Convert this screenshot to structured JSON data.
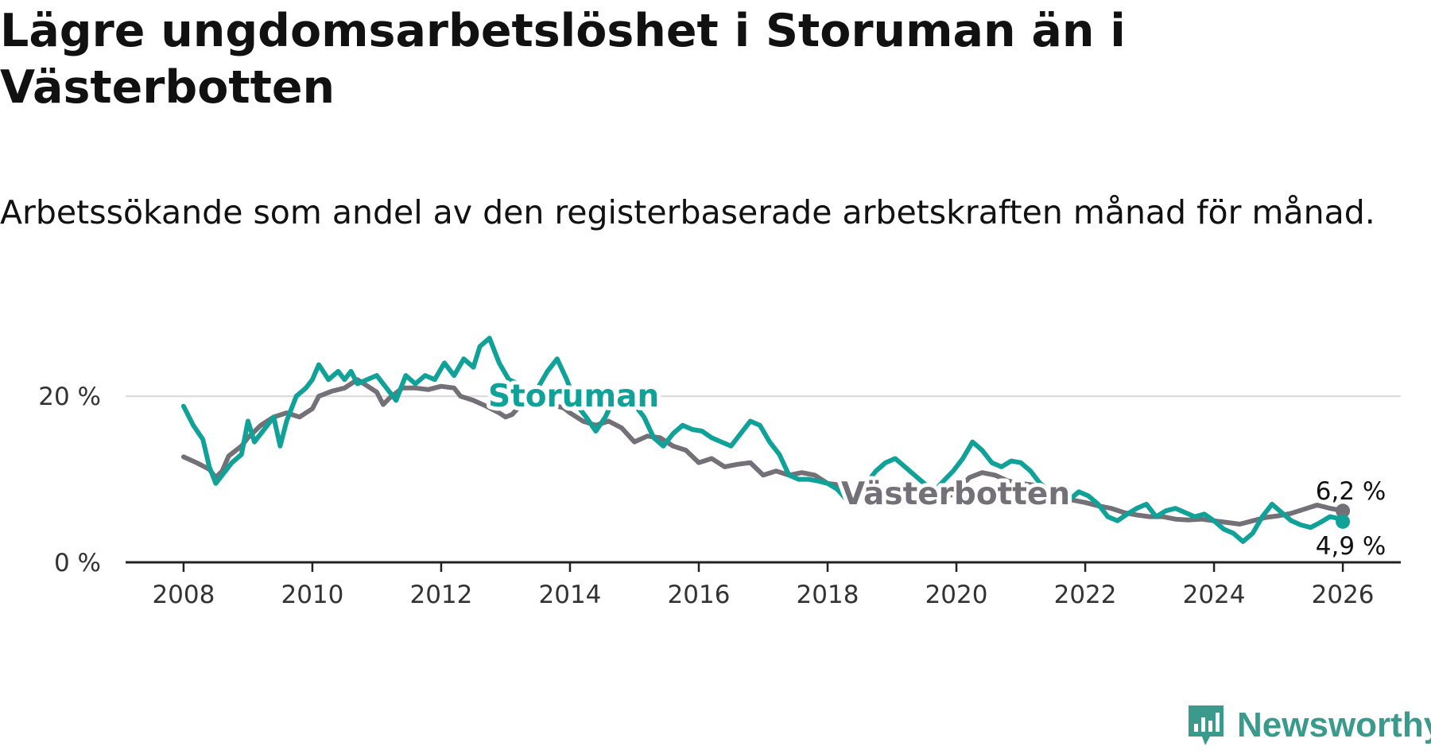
{
  "title": "Lägre ungdomsarbetslöshet i Storuman än i Västerbotten",
  "subtitle": "Arbetssökande som andel av den registerbaserade arbetskraften månad för månad.",
  "brand": "Newsworthy",
  "colors": {
    "storuman": "#10a298",
    "vasterbotten": "#737177",
    "grid": "#d9d9d9",
    "axis": "#222222"
  },
  "chart_data": {
    "type": "line",
    "x_unit": "year",
    "xlim": [
      2007.1,
      2026.9
    ],
    "ylim": [
      0,
      25
    ],
    "yticks": [
      {
        "v": 0,
        "label": "0 %"
      },
      {
        "v": 20,
        "label": "20 %"
      }
    ],
    "xticks": [
      {
        "v": 2008,
        "label": "2008"
      },
      {
        "v": 2010,
        "label": "2010"
      },
      {
        "v": 2012,
        "label": "2012"
      },
      {
        "v": 2014,
        "label": "2014"
      },
      {
        "v": 2016,
        "label": "2016"
      },
      {
        "v": 2018,
        "label": "2018"
      },
      {
        "v": 2020,
        "label": "2020"
      },
      {
        "v": 2022,
        "label": "2022"
      },
      {
        "v": 2024,
        "label": "2024"
      },
      {
        "v": 2026,
        "label": "2026"
      }
    ],
    "series": [
      {
        "name": "Västerbotten",
        "label": "Västerbotten",
        "end_label": "6,2 %",
        "points": [
          [
            2008.0,
            12.7
          ],
          [
            2008.2,
            12.0
          ],
          [
            2008.4,
            11.2
          ],
          [
            2008.5,
            10.2
          ],
          [
            2008.6,
            11.0
          ],
          [
            2008.7,
            12.8
          ],
          [
            2008.9,
            14.0
          ],
          [
            2009.0,
            15.0
          ],
          [
            2009.2,
            16.5
          ],
          [
            2009.4,
            17.5
          ],
          [
            2009.6,
            18.0
          ],
          [
            2009.8,
            17.5
          ],
          [
            2010.0,
            18.5
          ],
          [
            2010.1,
            20.0
          ],
          [
            2010.3,
            20.6
          ],
          [
            2010.5,
            21.0
          ],
          [
            2010.7,
            22.0
          ],
          [
            2010.8,
            21.5
          ],
          [
            2011.0,
            20.5
          ],
          [
            2011.1,
            19.0
          ],
          [
            2011.2,
            19.8
          ],
          [
            2011.4,
            21.0
          ],
          [
            2011.6,
            21.0
          ],
          [
            2011.8,
            20.8
          ],
          [
            2012.0,
            21.2
          ],
          [
            2012.2,
            21.0
          ],
          [
            2012.3,
            20.0
          ],
          [
            2012.5,
            19.5
          ],
          [
            2012.7,
            18.8
          ],
          [
            2012.9,
            18.0
          ],
          [
            2013.0,
            17.5
          ],
          [
            2013.1,
            17.8
          ],
          [
            2013.3,
            19.5
          ],
          [
            2013.5,
            19.5
          ],
          [
            2013.7,
            19.0
          ],
          [
            2013.9,
            18.6
          ],
          [
            2014.0,
            18.0
          ],
          [
            2014.2,
            17.0
          ],
          [
            2014.4,
            16.5
          ],
          [
            2014.6,
            17.0
          ],
          [
            2014.8,
            16.2
          ],
          [
            2015.0,
            14.5
          ],
          [
            2015.2,
            15.2
          ],
          [
            2015.4,
            15.0
          ],
          [
            2015.6,
            14.0
          ],
          [
            2015.8,
            13.5
          ],
          [
            2016.0,
            12.0
          ],
          [
            2016.2,
            12.5
          ],
          [
            2016.4,
            11.5
          ],
          [
            2016.6,
            11.8
          ],
          [
            2016.8,
            12.0
          ],
          [
            2017.0,
            10.5
          ],
          [
            2017.2,
            11.0
          ],
          [
            2017.4,
            10.5
          ],
          [
            2017.6,
            10.8
          ],
          [
            2017.8,
            10.5
          ],
          [
            2018.0,
            9.5
          ],
          [
            2018.2,
            9.3
          ],
          [
            2018.4,
            8.8
          ],
          [
            2018.6,
            8.0
          ],
          [
            2018.8,
            8.2
          ],
          [
            2019.0,
            9.0
          ],
          [
            2019.2,
            8.3
          ],
          [
            2019.4,
            8.0
          ],
          [
            2019.6,
            7.2
          ],
          [
            2019.8,
            7.6
          ],
          [
            2020.0,
            8.5
          ],
          [
            2020.2,
            10.2
          ],
          [
            2020.4,
            10.8
          ],
          [
            2020.6,
            10.5
          ],
          [
            2020.8,
            9.8
          ],
          [
            2021.0,
            9.5
          ],
          [
            2021.2,
            9.3
          ],
          [
            2021.4,
            8.8
          ],
          [
            2021.6,
            8.2
          ],
          [
            2021.8,
            7.5
          ],
          [
            2022.0,
            7.2
          ],
          [
            2022.2,
            6.8
          ],
          [
            2022.4,
            6.5
          ],
          [
            2022.6,
            6.0
          ],
          [
            2022.8,
            5.7
          ],
          [
            2023.0,
            5.5
          ],
          [
            2023.2,
            5.5
          ],
          [
            2023.4,
            5.2
          ],
          [
            2023.6,
            5.1
          ],
          [
            2023.8,
            5.2
          ],
          [
            2024.0,
            5.0
          ],
          [
            2024.2,
            4.8
          ],
          [
            2024.4,
            4.6
          ],
          [
            2024.6,
            5.0
          ],
          [
            2024.8,
            5.4
          ],
          [
            2025.0,
            5.6
          ],
          [
            2025.2,
            5.9
          ],
          [
            2025.4,
            6.4
          ],
          [
            2025.6,
            6.9
          ],
          [
            2025.8,
            6.5
          ],
          [
            2026.0,
            6.2
          ]
        ]
      },
      {
        "name": "Storuman",
        "label": "Storuman",
        "end_label": "4,9 %",
        "points": [
          [
            2008.0,
            18.8
          ],
          [
            2008.15,
            16.5
          ],
          [
            2008.3,
            14.8
          ],
          [
            2008.4,
            11.5
          ],
          [
            2008.5,
            9.5
          ],
          [
            2008.6,
            10.5
          ],
          [
            2008.75,
            12.0
          ],
          [
            2008.9,
            13.0
          ],
          [
            2009.0,
            17.0
          ],
          [
            2009.1,
            14.5
          ],
          [
            2009.25,
            16.0
          ],
          [
            2009.4,
            17.5
          ],
          [
            2009.5,
            14.0
          ],
          [
            2009.6,
            17.0
          ],
          [
            2009.75,
            20.0
          ],
          [
            2009.9,
            21.0
          ],
          [
            2010.0,
            22.0
          ],
          [
            2010.1,
            23.8
          ],
          [
            2010.25,
            22.0
          ],
          [
            2010.4,
            23.0
          ],
          [
            2010.5,
            22.0
          ],
          [
            2010.6,
            23.0
          ],
          [
            2010.7,
            21.5
          ],
          [
            2010.85,
            22.0
          ],
          [
            2011.0,
            22.5
          ],
          [
            2011.15,
            21.0
          ],
          [
            2011.3,
            19.5
          ],
          [
            2011.45,
            22.5
          ],
          [
            2011.6,
            21.5
          ],
          [
            2011.75,
            22.5
          ],
          [
            2011.9,
            22.0
          ],
          [
            2012.05,
            24.0
          ],
          [
            2012.2,
            22.5
          ],
          [
            2012.35,
            24.5
          ],
          [
            2012.5,
            23.5
          ],
          [
            2012.6,
            26.0
          ],
          [
            2012.75,
            27.0
          ],
          [
            2012.9,
            24.0
          ],
          [
            2013.05,
            22.0
          ],
          [
            2013.2,
            21.5
          ],
          [
            2013.35,
            20.0
          ],
          [
            2013.5,
            21.0
          ],
          [
            2013.65,
            23.0
          ],
          [
            2013.8,
            24.5
          ],
          [
            2013.95,
            22.0
          ],
          [
            2014.1,
            19.0
          ],
          [
            2014.25,
            17.5
          ],
          [
            2014.4,
            15.8
          ],
          [
            2014.55,
            17.5
          ],
          [
            2014.7,
            20.0
          ],
          [
            2014.85,
            21.0
          ],
          [
            2015.0,
            19.0
          ],
          [
            2015.15,
            17.5
          ],
          [
            2015.3,
            15.0
          ],
          [
            2015.45,
            14.0
          ],
          [
            2015.6,
            15.5
          ],
          [
            2015.75,
            16.5
          ],
          [
            2015.9,
            16.0
          ],
          [
            2016.05,
            15.8
          ],
          [
            2016.2,
            15.0
          ],
          [
            2016.35,
            14.5
          ],
          [
            2016.5,
            14.0
          ],
          [
            2016.65,
            15.5
          ],
          [
            2016.8,
            17.0
          ],
          [
            2016.95,
            16.5
          ],
          [
            2017.1,
            14.5
          ],
          [
            2017.25,
            13.0
          ],
          [
            2017.4,
            10.5
          ],
          [
            2017.55,
            10.0
          ],
          [
            2017.7,
            10.0
          ],
          [
            2017.85,
            9.8
          ],
          [
            2018.0,
            9.5
          ],
          [
            2018.15,
            8.8
          ],
          [
            2018.3,
            7.5
          ],
          [
            2018.45,
            8.5
          ],
          [
            2018.6,
            9.5
          ],
          [
            2018.75,
            11.0
          ],
          [
            2018.9,
            12.0
          ],
          [
            2019.05,
            12.5
          ],
          [
            2019.2,
            11.5
          ],
          [
            2019.35,
            10.5
          ],
          [
            2019.5,
            9.5
          ],
          [
            2019.65,
            8.5
          ],
          [
            2019.8,
            9.8
          ],
          [
            2019.95,
            11.0
          ],
          [
            2020.1,
            12.5
          ],
          [
            2020.25,
            14.5
          ],
          [
            2020.4,
            13.5
          ],
          [
            2020.55,
            12.0
          ],
          [
            2020.7,
            11.5
          ],
          [
            2020.85,
            12.2
          ],
          [
            2021.0,
            12.0
          ],
          [
            2021.15,
            11.0
          ],
          [
            2021.3,
            9.5
          ],
          [
            2021.45,
            8.5
          ],
          [
            2021.6,
            8.0
          ],
          [
            2021.75,
            7.5
          ],
          [
            2021.9,
            8.5
          ],
          [
            2022.05,
            8.0
          ],
          [
            2022.2,
            7.0
          ],
          [
            2022.35,
            5.5
          ],
          [
            2022.5,
            5.0
          ],
          [
            2022.65,
            5.8
          ],
          [
            2022.8,
            6.5
          ],
          [
            2022.95,
            7.0
          ],
          [
            2023.1,
            5.5
          ],
          [
            2023.25,
            6.2
          ],
          [
            2023.4,
            6.5
          ],
          [
            2023.55,
            6.0
          ],
          [
            2023.7,
            5.5
          ],
          [
            2023.85,
            5.8
          ],
          [
            2024.0,
            5.0
          ],
          [
            2024.15,
            4.0
          ],
          [
            2024.3,
            3.5
          ],
          [
            2024.45,
            2.5
          ],
          [
            2024.6,
            3.5
          ],
          [
            2024.75,
            5.5
          ],
          [
            2024.9,
            7.0
          ],
          [
            2025.05,
            6.0
          ],
          [
            2025.2,
            5.0
          ],
          [
            2025.35,
            4.5
          ],
          [
            2025.5,
            4.2
          ],
          [
            2025.65,
            4.8
          ],
          [
            2025.8,
            5.5
          ],
          [
            2025.92,
            5.3
          ],
          [
            2026.0,
            4.9
          ]
        ]
      }
    ]
  }
}
